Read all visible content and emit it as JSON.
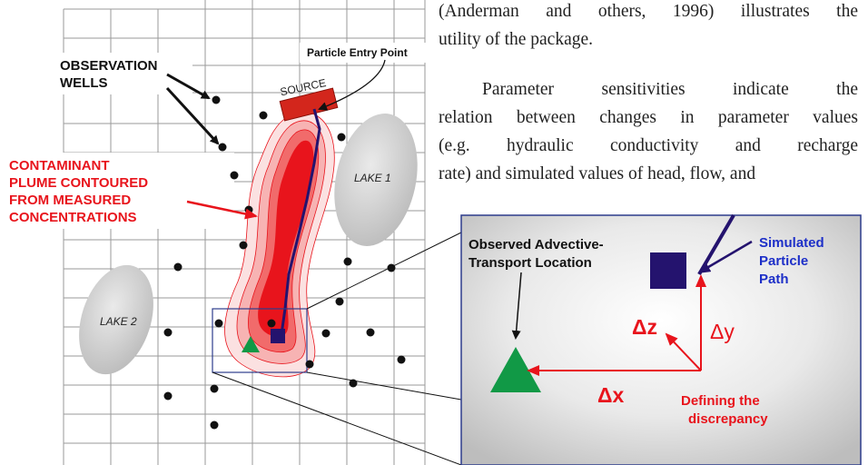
{
  "paragraph_continuation": {
    "line1": "(Anderman and others, 1996) illustrates the",
    "line2": "utility of the package."
  },
  "paragraph_sensitivities": {
    "line1": "Parameter sensitivities indicate the",
    "line2": "relation between changes in parameter values",
    "line3": "(e.g. hydraulic conductivity and recharge",
    "line4": "rate) and simulated values of head, flow, and"
  },
  "map": {
    "observation_wells_line1": "OBSERVATION",
    "observation_wells_line2": "WELLS",
    "particle_entry_point": "Particle Entry Point",
    "source": "SOURCE",
    "plume_line1": "CONTAMINANT",
    "plume_line2": "PLUME CONTOURED",
    "plume_line3": "FROM MEASURED",
    "plume_line4": "CONCENTRATIONS",
    "lake1": "LAKE 1",
    "lake2": "LAKE 2"
  },
  "inset": {
    "observed_line1": "Observed Advective-",
    "observed_line2": "Transport Location",
    "simulated_line1": "Simulated",
    "simulated_line2": "Particle",
    "simulated_line3": "Path",
    "delta_z": "Δz",
    "delta_y": "Δy",
    "delta_x": "Δx",
    "defining_line1": "Defining the",
    "defining_line2": "discrepancy"
  },
  "colors": {
    "plume_red": "#e8141c",
    "particle_path_navy": "#24136e",
    "observed_green": "#119946",
    "label_red": "#e8141c",
    "simulated_blue": "#1d2fc8"
  }
}
